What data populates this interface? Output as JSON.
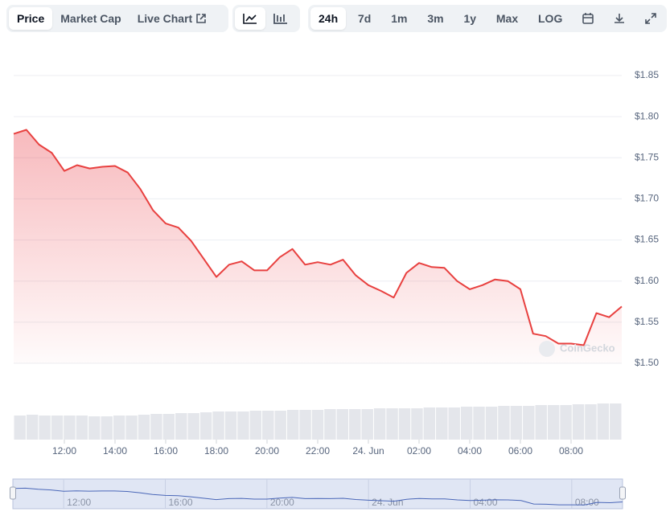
{
  "toolbar": {
    "views": [
      "Price",
      "Market Cap",
      "Live Chart"
    ],
    "ranges": [
      "24h",
      "7d",
      "1m",
      "3m",
      "1y",
      "Max",
      "LOG"
    ]
  },
  "chart_data": {
    "type": "line",
    "watermark": "CoinGecko",
    "x": [
      10,
      10.5,
      11,
      11.5,
      12,
      12.5,
      13,
      13.5,
      14,
      14.5,
      15,
      15.5,
      16,
      16.5,
      17,
      17.5,
      18,
      18.5,
      19,
      19.5,
      20,
      20.5,
      21,
      21.5,
      22,
      22.5,
      23,
      23.5,
      24,
      24.5,
      25,
      25.5,
      26,
      26.5,
      27,
      27.5,
      28,
      28.5,
      29,
      29.5,
      30,
      30.5,
      31,
      31.5,
      32,
      32.5,
      33,
      33.5,
      34
    ],
    "series": [
      {
        "color": "#e8403f",
        "values": [
          1.779,
          1.784,
          1.766,
          1.756,
          1.734,
          1.741,
          1.737,
          1.739,
          1.74,
          1.732,
          1.712,
          1.686,
          1.67,
          1.665,
          1.649,
          1.627,
          1.605,
          1.62,
          1.624,
          1.613,
          1.613,
          1.629,
          1.639,
          1.62,
          1.623,
          1.62,
          1.626,
          1.607,
          1.595,
          1.588,
          1.58,
          1.61,
          1.622,
          1.617,
          1.616,
          1.6,
          1.59,
          1.595,
          1.602,
          1.6,
          1.59,
          1.536,
          1.533,
          1.524,
          1.524,
          1.522,
          1.561,
          1.556,
          1.569
        ]
      }
    ],
    "xlim": [
      10,
      34
    ],
    "xticks": [
      {
        "value": 12,
        "label": "12:00"
      },
      {
        "value": 14,
        "label": "14:00"
      },
      {
        "value": 16,
        "label": "16:00"
      },
      {
        "value": 18,
        "label": "18:00"
      },
      {
        "value": 20,
        "label": "20:00"
      },
      {
        "value": 22,
        "label": "22:00"
      },
      {
        "value": 24,
        "label": "24. Jun"
      },
      {
        "value": 26,
        "label": "02:00"
      },
      {
        "value": 28,
        "label": "04:00"
      },
      {
        "value": 30,
        "label": "06:00"
      },
      {
        "value": 32,
        "label": "08:00"
      }
    ],
    "ylim": [
      1.5,
      1.85
    ],
    "yticks": [
      {
        "value": 1.5,
        "label": "$1.50"
      },
      {
        "value": 1.55,
        "label": "$1.55"
      },
      {
        "value": 1.6,
        "label": "$1.60"
      },
      {
        "value": 1.65,
        "label": "$1.65"
      },
      {
        "value": 1.7,
        "label": "$1.70"
      },
      {
        "value": 1.75,
        "label": "$1.75"
      },
      {
        "value": 1.8,
        "label": "$1.80"
      },
      {
        "value": 1.85,
        "label": "$1.85"
      }
    ],
    "grid": true,
    "volume": {
      "color": "#e4e6eb",
      "values": [
        30,
        31,
        30,
        30,
        30,
        30,
        29,
        29,
        30,
        30,
        31,
        32,
        32,
        33,
        33,
        34,
        35,
        35,
        35,
        36,
        36,
        36,
        37,
        37,
        37,
        38,
        38,
        38,
        38,
        39,
        39,
        39,
        39,
        40,
        40,
        40,
        41,
        41,
        41,
        42,
        42,
        42,
        43,
        43,
        43,
        44,
        44,
        45,
        45
      ]
    },
    "navigator": {
      "xticks": [
        {
          "value": 12,
          "label": "12:00"
        },
        {
          "value": 16,
          "label": "16:00"
        },
        {
          "value": 20,
          "label": "20:00"
        },
        {
          "value": 24,
          "label": "24. Jun"
        },
        {
          "value": 28,
          "label": "04:00"
        },
        {
          "value": 32,
          "label": "08:00"
        }
      ]
    }
  }
}
